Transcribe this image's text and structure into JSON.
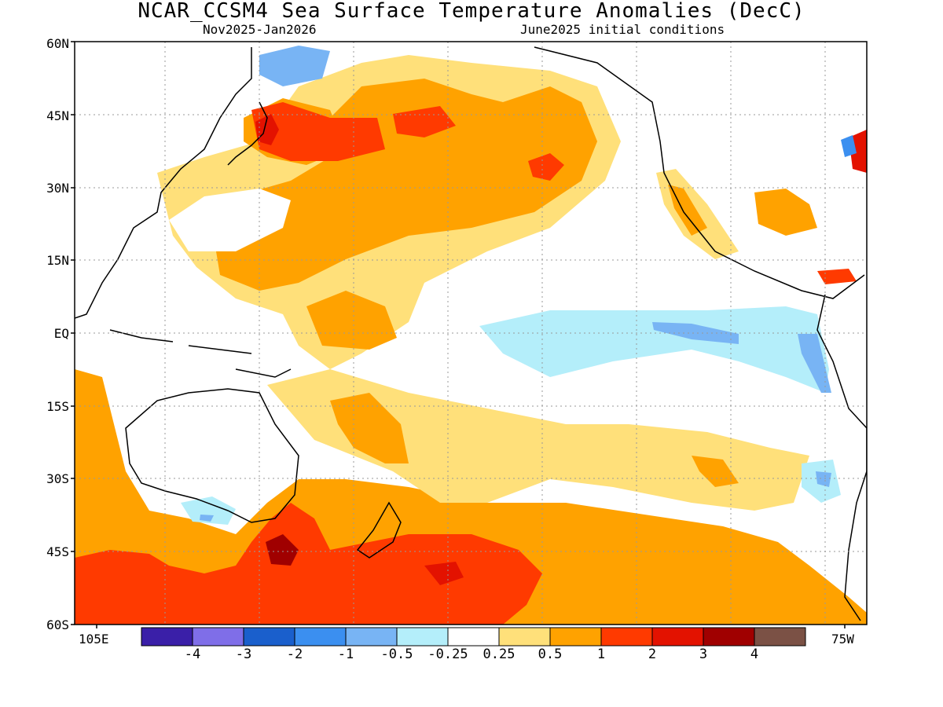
{
  "header": {
    "title": "NCAR_CCSM4 Sea Surface Temperature Anomalies (DecC)",
    "period": "Nov2025-Jan2026",
    "init": "June2025 initial conditions"
  },
  "axes": {
    "lat_ticks": [
      "60N",
      "45N",
      "30N",
      "15N",
      "EQ",
      "15S",
      "30S",
      "45S",
      "60S"
    ],
    "lon_left": "105E",
    "lon_right": "75W"
  },
  "colorbar": {
    "colors": [
      "#3a1fa8",
      "#7f6ee8",
      "#1a5fcc",
      "#3b8ff0",
      "#78b4f4",
      "#b4eefa",
      "#ffffff",
      "#ffe07a",
      "#ffa200",
      "#ff3a00",
      "#e31200",
      "#a00000",
      "#7b5145"
    ],
    "labels": [
      "-4",
      "-3",
      "-2",
      "-1",
      "-0.5",
      "-0.25",
      "0.25",
      "0.5",
      "1",
      "2",
      "3",
      "4"
    ]
  },
  "legend_colors": {
    "very_warm": "#a00000",
    "warm_3": "#e31200",
    "warm_2": "#ff3a00",
    "warm_1": "#ffa200",
    "warm_05": "#ffe07a",
    "cool_025": "#b4eefa",
    "cool_05": "#78b4f4",
    "cool_1": "#3b8ff0"
  }
}
